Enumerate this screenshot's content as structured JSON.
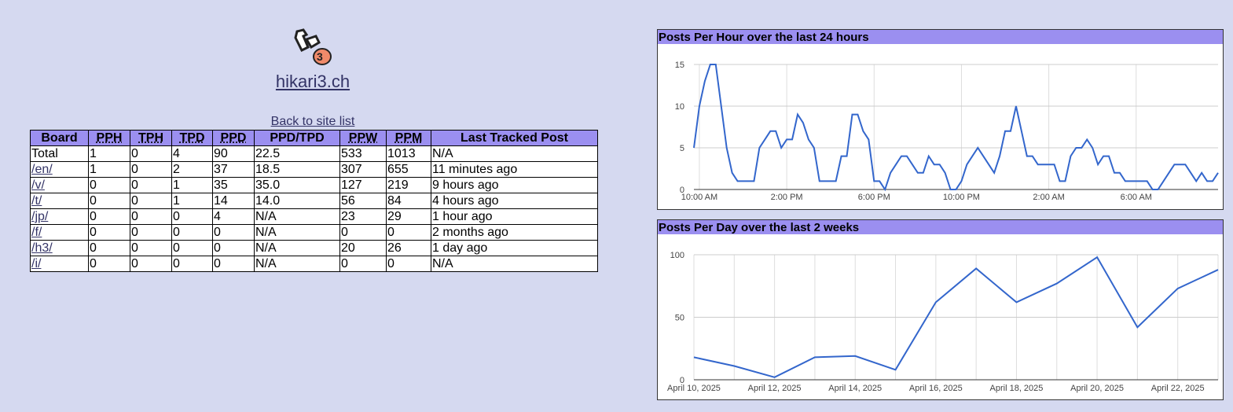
{
  "header": {
    "site_name": "hikari3.ch",
    "back_link": "Back to site list"
  },
  "table": {
    "columns": [
      "Board",
      "PPH",
      "TPH",
      "TPD",
      "PPD",
      "PPD/TPD",
      "PPW",
      "PPM",
      "Last Tracked Post"
    ],
    "rows": [
      [
        "Total",
        "1",
        "0",
        "4",
        "90",
        "22.5",
        "533",
        "1013",
        "N/A"
      ],
      [
        "/en/",
        "1",
        "0",
        "2",
        "37",
        "18.5",
        "307",
        "655",
        "11 minutes ago"
      ],
      [
        "/v/",
        "0",
        "0",
        "1",
        "35",
        "35.0",
        "127",
        "219",
        "9 hours ago"
      ],
      [
        "/t/",
        "0",
        "0",
        "1",
        "14",
        "14.0",
        "56",
        "84",
        "4 hours ago"
      ],
      [
        "/jp/",
        "0",
        "0",
        "0",
        "4",
        "N/A",
        "23",
        "29",
        "1 hour ago"
      ],
      [
        "/f/",
        "0",
        "0",
        "0",
        "0",
        "N/A",
        "0",
        "0",
        "2 months ago"
      ],
      [
        "/h3/",
        "0",
        "0",
        "0",
        "0",
        "N/A",
        "20",
        "26",
        "1 day ago"
      ],
      [
        "/i/",
        "0",
        "0",
        "0",
        "0",
        "N/A",
        "0",
        "0",
        "N/A"
      ]
    ]
  },
  "chart_data": [
    {
      "type": "line",
      "title": "Posts Per Hour over the last 24 hours",
      "color": "#3366cc",
      "values": [
        5,
        10,
        13,
        15,
        15,
        10,
        5,
        2,
        1,
        1,
        1,
        1,
        5,
        6,
        7,
        7,
        5,
        6,
        6,
        9,
        8,
        6,
        5,
        1,
        1,
        1,
        1,
        4,
        4,
        9,
        9,
        7,
        6,
        1,
        1,
        0,
        2,
        3,
        4,
        4,
        3,
        2,
        2,
        4,
        3,
        3,
        2,
        0,
        0,
        1,
        3,
        4,
        5,
        4,
        3,
        2,
        4,
        7,
        7,
        10,
        7,
        4,
        4,
        3,
        3,
        3,
        3,
        1,
        1,
        4,
        5,
        5,
        6,
        5,
        3,
        4,
        4,
        2,
        2,
        1,
        1,
        1,
        1,
        1,
        0,
        0,
        1,
        2,
        3,
        3,
        3,
        2,
        1,
        2,
        1,
        1,
        2
      ],
      "xlim": [
        0,
        96
      ],
      "xticks": [
        {
          "value": 1,
          "label": "10:00 AM"
        },
        {
          "value": 17,
          "label": "2:00 PM"
        },
        {
          "value": 33,
          "label": "6:00 PM"
        },
        {
          "value": 49,
          "label": "10:00 PM"
        },
        {
          "value": 65,
          "label": "2:00 AM"
        },
        {
          "value": 81,
          "label": "6:00 AM"
        }
      ],
      "ylim": [
        0,
        15
      ],
      "yticks": [
        0,
        5,
        10,
        15
      ],
      "grid": true
    },
    {
      "type": "line",
      "title": "Posts Per Day over the last 2 weeks",
      "color": "#3366cc",
      "categories": [
        "April 10, 2025",
        null,
        "April 12, 2025",
        null,
        "April 14, 2025",
        null,
        "April 16, 2025",
        null,
        "April 18, 2025",
        null,
        "April 20, 2025",
        null,
        "April 22, 2025",
        null
      ],
      "values": [
        18,
        11,
        2,
        18,
        19,
        8,
        62,
        89,
        62,
        77,
        98,
        42,
        73,
        88
      ],
      "ylim": [
        0,
        100
      ],
      "yticks": [
        0,
        50,
        100
      ],
      "grid": true
    }
  ]
}
